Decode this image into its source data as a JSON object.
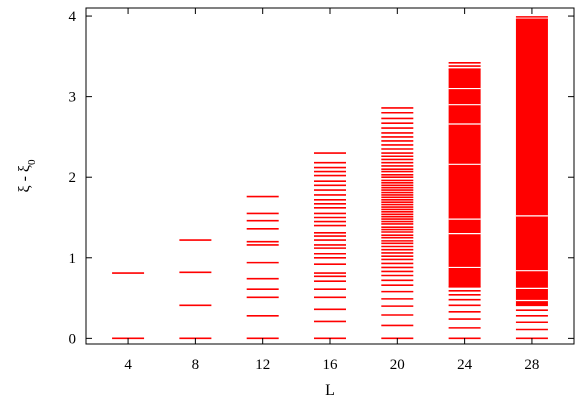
{
  "chart_data": {
    "type": "scatter",
    "marker": "horizontal-dash",
    "xlabel": "L",
    "ylabel": "ξ - ξ",
    "ylabel_subscript": "0",
    "x_ticks": [
      "4",
      "8",
      "12",
      "16",
      "20",
      "24",
      "28"
    ],
    "y_ticks": [
      "0",
      "1",
      "2",
      "3",
      "4"
    ],
    "xlim": [
      1.5,
      30.5
    ],
    "ylim": [
      -0.07,
      4.1
    ],
    "grid": false,
    "color": "#ff0000",
    "series": [
      {
        "x": 4,
        "values": [
          0,
          0.81
        ]
      },
      {
        "x": 8,
        "values": [
          0,
          0.41,
          0.82,
          1.22
        ]
      },
      {
        "x": 12,
        "values": [
          0,
          0.28,
          0.51,
          0.61,
          0.74,
          0.94,
          1.16,
          1.2,
          1.36,
          1.46,
          1.55,
          1.76
        ]
      },
      {
        "x": 16,
        "values": [
          0,
          0.21,
          0.36,
          0.51,
          0.61,
          0.71,
          0.77,
          0.81,
          0.92,
          1.0,
          1.05,
          1.12,
          1.16,
          1.22,
          1.27,
          1.31,
          1.4,
          1.45,
          1.5,
          1.55,
          1.62,
          1.67,
          1.72,
          1.78,
          1.84,
          1.9,
          1.95,
          2.02,
          2.07,
          2.12,
          2.18,
          2.3
        ]
      },
      {
        "x": 20,
        "values": [
          0,
          0.16,
          0.29,
          0.4,
          0.49,
          0.58,
          0.66,
          0.72,
          0.78,
          0.83,
          0.88,
          0.93,
          0.98,
          1.02,
          1.06,
          1.1,
          1.14,
          1.18,
          1.21,
          1.25,
          1.28,
          1.32,
          1.35,
          1.38,
          1.42,
          1.45,
          1.48,
          1.51,
          1.54,
          1.57,
          1.6,
          1.63,
          1.66,
          1.69,
          1.72,
          1.75,
          1.78,
          1.81,
          1.84,
          1.87,
          1.9,
          1.93,
          1.96,
          2.0,
          2.03,
          2.07,
          2.1,
          2.14,
          2.18,
          2.22,
          2.26,
          2.3,
          2.35,
          2.4,
          2.45,
          2.5,
          2.55,
          2.61,
          2.67,
          2.73,
          2.8,
          2.86
        ]
      },
      {
        "x": 24,
        "values": [
          0,
          0.13,
          0.24,
          0.33,
          0.41,
          0.48,
          0.54,
          0.59,
          0.64
        ],
        "band": [
          0.64,
          3.34
        ],
        "gaps": [
          0.88,
          1.3,
          1.48,
          2.16,
          2.66,
          2.9,
          3.1
        ],
        "top": [
          3.34,
          3.38,
          3.42
        ]
      },
      {
        "x": 28,
        "values": [
          0,
          0.11,
          0.2,
          0.28,
          0.35,
          0.41
        ],
        "band": [
          0.41,
          3.96
        ],
        "gaps": [
          0.47,
          0.62,
          0.84,
          1.52
        ],
        "top": [
          3.96,
          3.99
        ]
      }
    ]
  }
}
